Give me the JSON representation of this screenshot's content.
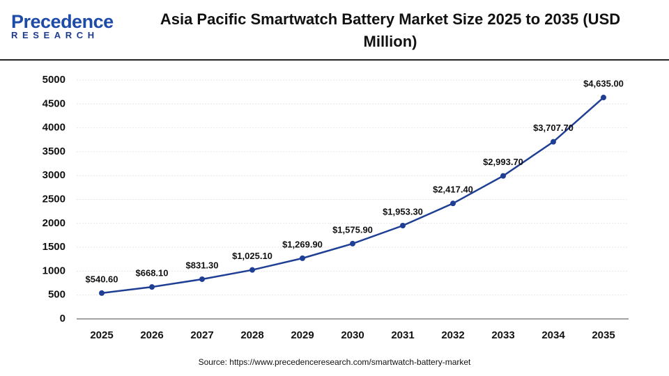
{
  "logo": {
    "name": "Precedence",
    "sub": "RESEARCH"
  },
  "chart_data": {
    "type": "line",
    "title": "Asia Pacific Smartwatch Battery Market Size 2025 to 2035 (USD Million)",
    "source": "Source: https://www.precedenceresearch.com/smartwatch-battery-market",
    "categories": [
      "2025",
      "2026",
      "2027",
      "2028",
      "2029",
      "2030",
      "2031",
      "2032",
      "2033",
      "2034",
      "2035"
    ],
    "values": [
      540.6,
      668.1,
      831.3,
      1025.1,
      1269.9,
      1575.9,
      1953.3,
      2417.4,
      2993.7,
      3707.7,
      4635.0
    ],
    "value_labels": [
      "$540.60",
      "$668.10",
      "$831.30",
      "$1,025.10",
      "$1,269.90",
      "$1,575.90",
      "$1,953.30",
      "$2,417.40",
      "$2,993.70",
      "$3,707.70",
      "$4,635.00"
    ],
    "color": "#1f3f94",
    "ylim": [
      0,
      5000
    ],
    "yticks": [
      0,
      500,
      1000,
      1500,
      2000,
      2500,
      3000,
      3500,
      4000,
      4500,
      5000
    ],
    "grid": true
  }
}
